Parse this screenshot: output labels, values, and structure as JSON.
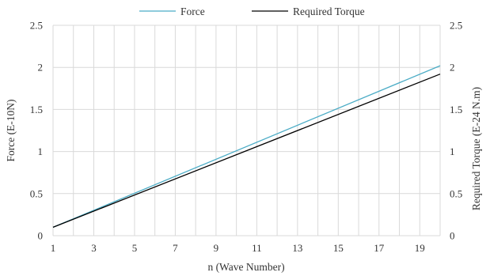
{
  "chart_data": {
    "type": "line",
    "xlabel": "n (Wave Number)",
    "ylabel": "Force (E-10N)",
    "y2label": "Required Torque (E-24 N.m)",
    "xlim": [
      1,
      20
    ],
    "ylim": [
      0,
      2.5
    ],
    "y2lim": [
      0,
      2.5
    ],
    "x_ticks": [
      "1",
      "3",
      "5",
      "7",
      "9",
      "11",
      "13",
      "15",
      "17",
      "19"
    ],
    "y_ticks": [
      "0",
      "0.5",
      "1",
      "1.5",
      "2",
      "2.5"
    ],
    "y2_ticks": [
      "0",
      "0.5",
      "1",
      "1.5",
      "2",
      "2.5"
    ],
    "grid": true,
    "legend_position": "top",
    "series": [
      {
        "name": "Force",
        "axis": "left",
        "color": "#4bacc6",
        "x": [
          1,
          20
        ],
        "y": [
          0.1,
          2.02
        ]
      },
      {
        "name": "Required Torque",
        "axis": "right",
        "color": "#000000",
        "x": [
          1,
          20
        ],
        "y": [
          0.1,
          1.92
        ]
      }
    ]
  }
}
